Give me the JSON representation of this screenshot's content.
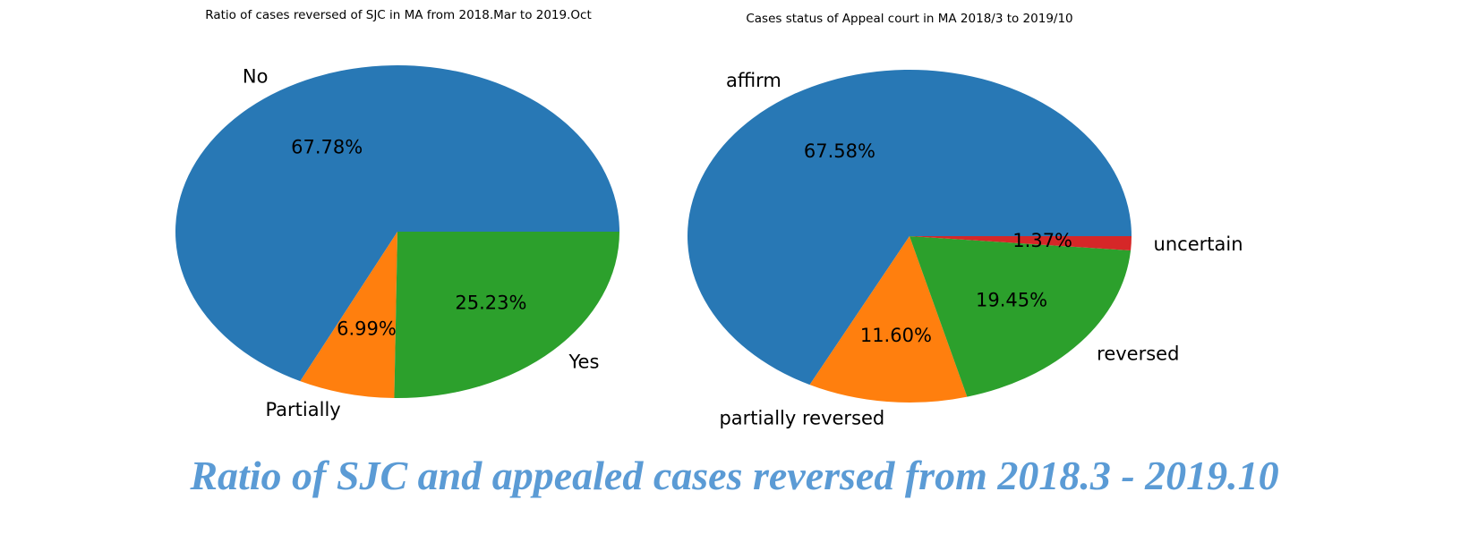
{
  "caption": "Ratio of SJC and appealed cases reversed from 2018.3 - 2019.10",
  "colors": {
    "caption": "#5b9bd5"
  },
  "chart_data": [
    {
      "type": "pie",
      "title": "Ratio of cases reversed of SJC in MA from 2018.Mar to 2019.Oct",
      "slices": [
        {
          "label": "No",
          "value": 67.78,
          "pct_label": "67.78%",
          "color": "#2878b5"
        },
        {
          "label": "Partially",
          "value": 6.99,
          "pct_label": "6.99%",
          "color": "#ff7f0e"
        },
        {
          "label": "Yes",
          "value": 25.23,
          "pct_label": "25.23%",
          "color": "#2ca02c"
        }
      ],
      "start_angle_deg": 0,
      "direction": "counterclockwise",
      "legend": "none"
    },
    {
      "type": "pie",
      "title": "Cases status of Appeal court in MA 2018/3 to 2019/10",
      "slices": [
        {
          "label": "affirm",
          "value": 67.58,
          "pct_label": "67.58%",
          "color": "#2878b5"
        },
        {
          "label": "partially reversed",
          "value": 11.6,
          "pct_label": "11.60%",
          "color": "#ff7f0e"
        },
        {
          "label": "reversed",
          "value": 19.45,
          "pct_label": "19.45%",
          "color": "#2ca02c"
        },
        {
          "label": "uncertain",
          "value": 1.37,
          "pct_label": "1.37%",
          "color": "#d62728"
        }
      ],
      "start_angle_deg": 0,
      "direction": "counterclockwise",
      "legend": "none"
    }
  ]
}
